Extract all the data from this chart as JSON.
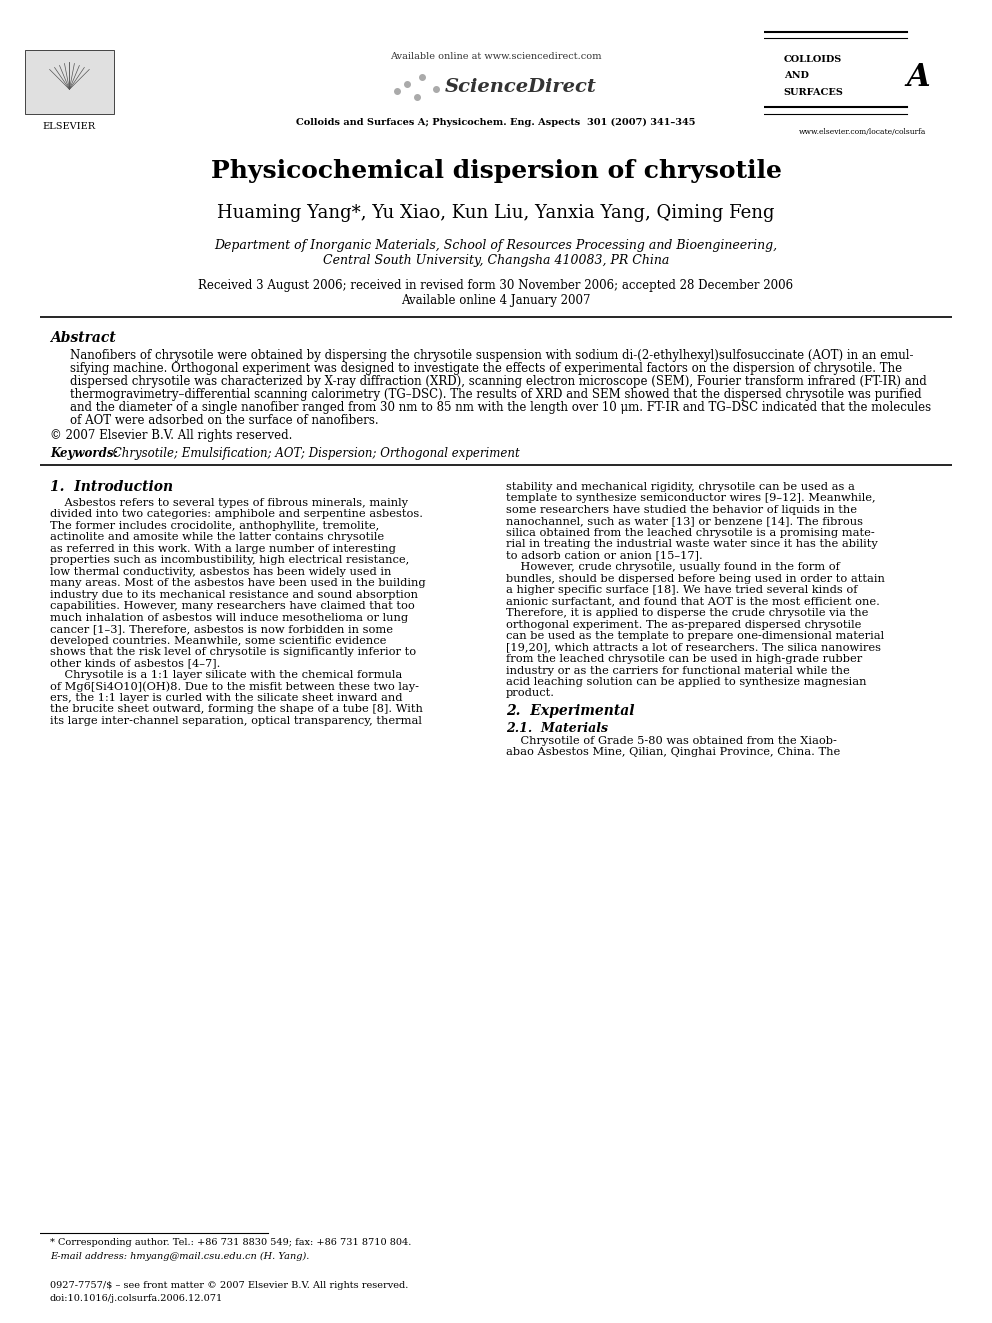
{
  "bg_color": "#ffffff",
  "title": "Physicochemical dispersion of chrysotile",
  "authors": "Huaming Yang*, Yu Xiao, Kun Liu, Yanxia Yang, Qiming Feng",
  "affiliation1": "Department of Inorganic Materials, School of Resources Processing and Bioengineering,",
  "affiliation2": "Central South University, Changsha 410083, PR China",
  "received": "Received 3 August 2006; received in revised form 30 November 2006; accepted 28 December 2006",
  "available": "Available online 4 January 2007",
  "journal_info": "Colloids and Surfaces A; Physicochem. Eng. Aspects  301 (2007) 341–345",
  "available_online": "Available online at www.sciencedirect.com",
  "journal_name_top": "COLLOIDS\nAND\nSURFACES",
  "journal_letter": "A",
  "elsevier_text": "ELSEVIER",
  "website": "www.elsevier.com/locate/colsurfa",
  "abstract_title": "Abstract",
  "abstract_text": "Nanofibers of chrysotile were obtained by dispersing the chrysotile suspension with sodium di-(2-ethylhexyl)sulfosuccinate (AOT) in an emul-\nsifying machine. Orthogonal experiment was designed to investigate the effects of experimental factors on the dispersion of chrysotile. The\ndispersed chrysotile was characterized by X-ray diffraction (XRD), scanning electron microscope (SEM), Fourier transform infrared (FT-IR) and\nthermogravimetry–differential scanning calorimetry (TG–DSC). The results of XRD and SEM showed that the dispersed chrysotile was purified\nand the diameter of a single nanofiber ranged from 30 nm to 85 nm with the length over 10 μm. FT-IR and TG–DSC indicated that the molecules\nof AOT were adsorbed on the surface of nanofibers.",
  "copyright": "© 2007 Elsevier B.V. All rights reserved.",
  "keywords_label": "Keywords:",
  "keywords_text": " Chrysotile; Emulsification; AOT; Dispersion; Orthogonal experiment",
  "section1_title": "1.  Introduction",
  "section1_left": "    Asbestos refers to several types of fibrous minerals, mainly\ndivided into two categories: amphibole and serpentine asbestos.\nThe former includes crocidolite, anthophyllite, tremolite,\nactinolite and amosite while the latter contains chrysotile\nas referred in this work. With a large number of interesting\nproperties such as incombustibility, high electrical resistance,\nlow thermal conductivity, asbestos has been widely used in\nmany areas. Most of the asbestos have been used in the building\nindustry due to its mechanical resistance and sound absorption\ncapabilities. However, many researchers have claimed that too\nmuch inhalation of asbestos will induce mesothelioma or lung\ncancer [1–3]. Therefore, asbestos is now forbidden in some\ndeveloped countries. Meanwhile, some scientific evidence\nshows that the risk level of chrysotile is significantly inferior to\nother kinds of asbestos [4–7].\n    Chrysotile is a 1:1 layer silicate with the chemical formula\nof Mg6[Si4O10](OH)8. Due to the misfit between these two lay-\ners, the 1:1 layer is curled with the silicate sheet inward and\nthe brucite sheet outward, forming the shape of a tube [8]. With\nits large inter-channel separation, optical transparency, thermal",
  "section1_right": "stability and mechanical rigidity, chrysotile can be used as a\ntemplate to synthesize semiconductor wires [9–12]. Meanwhile,\nsome researchers have studied the behavior of liquids in the\nnanochannel, such as water [13] or benzene [14]. The fibrous\nsilica obtained from the leached chrysotile is a promising mate-\nrial in treating the industrial waste water since it has the ability\nto adsorb cation or anion [15–17].\n    However, crude chrysotile, usually found in the form of\nbundles, should be dispersed before being used in order to attain\na higher specific surface [18]. We have tried several kinds of\nanionic surfactant, and found that AOT is the most efficient one.\nTherefore, it is applied to disperse the crude chrysotile via the\northogonal experiment. The as-prepared dispersed chrysotile\ncan be used as the template to prepare one-dimensional material\n[19,20], which attracts a lot of researchers. The silica nanowires\nfrom the leached chrysotile can be used in high-grade rubber\nindustry or as the carriers for functional material while the\nacid leaching solution can be applied to synthesize magnesian\nproduct.",
  "section2_title": "2.  Experimental",
  "section21_title": "2.1.  Materials",
  "section21_text": "    Chrysotile of Grade 5-80 was obtained from the Xiaob-\nabao Asbestos Mine, Qilian, Qinghai Province, China. The",
  "footer_note": "* Corresponding author. Tel.: +86 731 8830 549; fax: +86 731 8710 804.",
  "footer_email": "E-mail address: hmyang@mail.csu.edu.cn (H. Yang).",
  "footer_issn": "0927-7757/$ – see front matter © 2007 Elsevier B.V. All rights reserved.",
  "footer_doi": "doi:10.1016/j.colsurfa.2006.12.071"
}
